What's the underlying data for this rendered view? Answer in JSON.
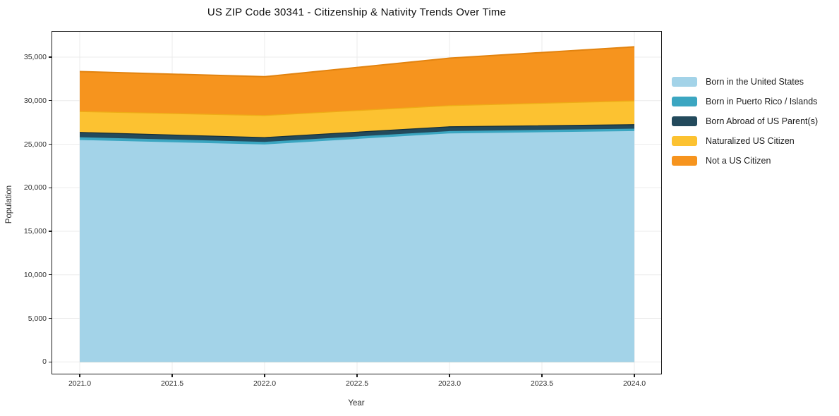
{
  "chart_data": {
    "type": "area",
    "stacked": true,
    "title": "US ZIP Code 30341 - Citizenship & Nativity Trends Over Time",
    "xlabel": "Year",
    "ylabel": "Population",
    "x": [
      2021,
      2022,
      2023,
      2024
    ],
    "x_tick_labels": [
      "2021.0",
      "2021.5",
      "2022.0",
      "2022.5",
      "2023.0",
      "2023.5",
      "2024.0"
    ],
    "y_tick_labels": [
      "0",
      "5,000",
      "10,000",
      "15,000",
      "20,000",
      "25,000",
      "30,000",
      "35,000"
    ],
    "ylim": [
      0,
      35000
    ],
    "grid": true,
    "grid_color": "#ebebeb",
    "legend_position": "right",
    "series": [
      {
        "name": "Born in the United States",
        "color": "#a3d3e8",
        "values": [
          25480,
          24970,
          26240,
          26510
        ]
      },
      {
        "name": "Born in Puerto Rico / Islands",
        "color": "#3ba6c1",
        "values": [
          320,
          300,
          270,
          270
        ]
      },
      {
        "name": "Born Abroad of US Parent(s)",
        "color": "#234a5c",
        "edge": "#152f3b",
        "values": [
          550,
          490,
          490,
          460
        ]
      },
      {
        "name": "Naturalized US Citizen",
        "color": "#fcc231",
        "edge": "#eeac16",
        "values": [
          2400,
          2540,
          2430,
          2730
        ]
      },
      {
        "name": "Not a US Citizen",
        "color": "#f6941e",
        "edge": "#e2830f",
        "values": [
          4590,
          4450,
          5450,
          6210
        ]
      }
    ],
    "stacked_totals": [
      33340,
      32750,
      34880,
      36180
    ]
  }
}
